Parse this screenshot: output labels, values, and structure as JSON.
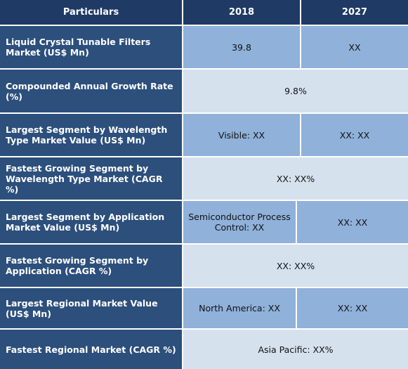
{
  "header": {
    "particulars": "Particulars",
    "year1": "2018",
    "year2": "2027"
  },
  "rows": [
    {
      "label": "Liquid Crystal Tunable Filters Market (US$ Mn)",
      "v2018": "39.8",
      "v2027": "XX"
    },
    {
      "label": "Compounded Annual Growth Rate (%)",
      "merged": "9.8%"
    },
    {
      "label": "Largest Segment by Wavelength Type Market Value (US$ Mn)",
      "v2018": "Visible: XX",
      "v2027": "XX: XX"
    },
    {
      "label": "Fastest Growing Segment by Wavelength Type Market (CAGR %)",
      "merged": "XX: XX%"
    },
    {
      "label": "Largest Segment by Application Market Value (US$ Mn)",
      "v2018": "Semiconductor Process Control: XX",
      "v2027": "XX: XX"
    },
    {
      "label": "Fastest Growing Segment by Application (CAGR %)",
      "merged": "XX: XX%"
    },
    {
      "label": "Largest Regional Market Value (US$ Mn)",
      "v2018": "North America: XX",
      "v2027": "XX: XX"
    },
    {
      "label": "Fastest Regional Market (CAGR %)",
      "merged": "Asia Pacific: XX%"
    }
  ]
}
